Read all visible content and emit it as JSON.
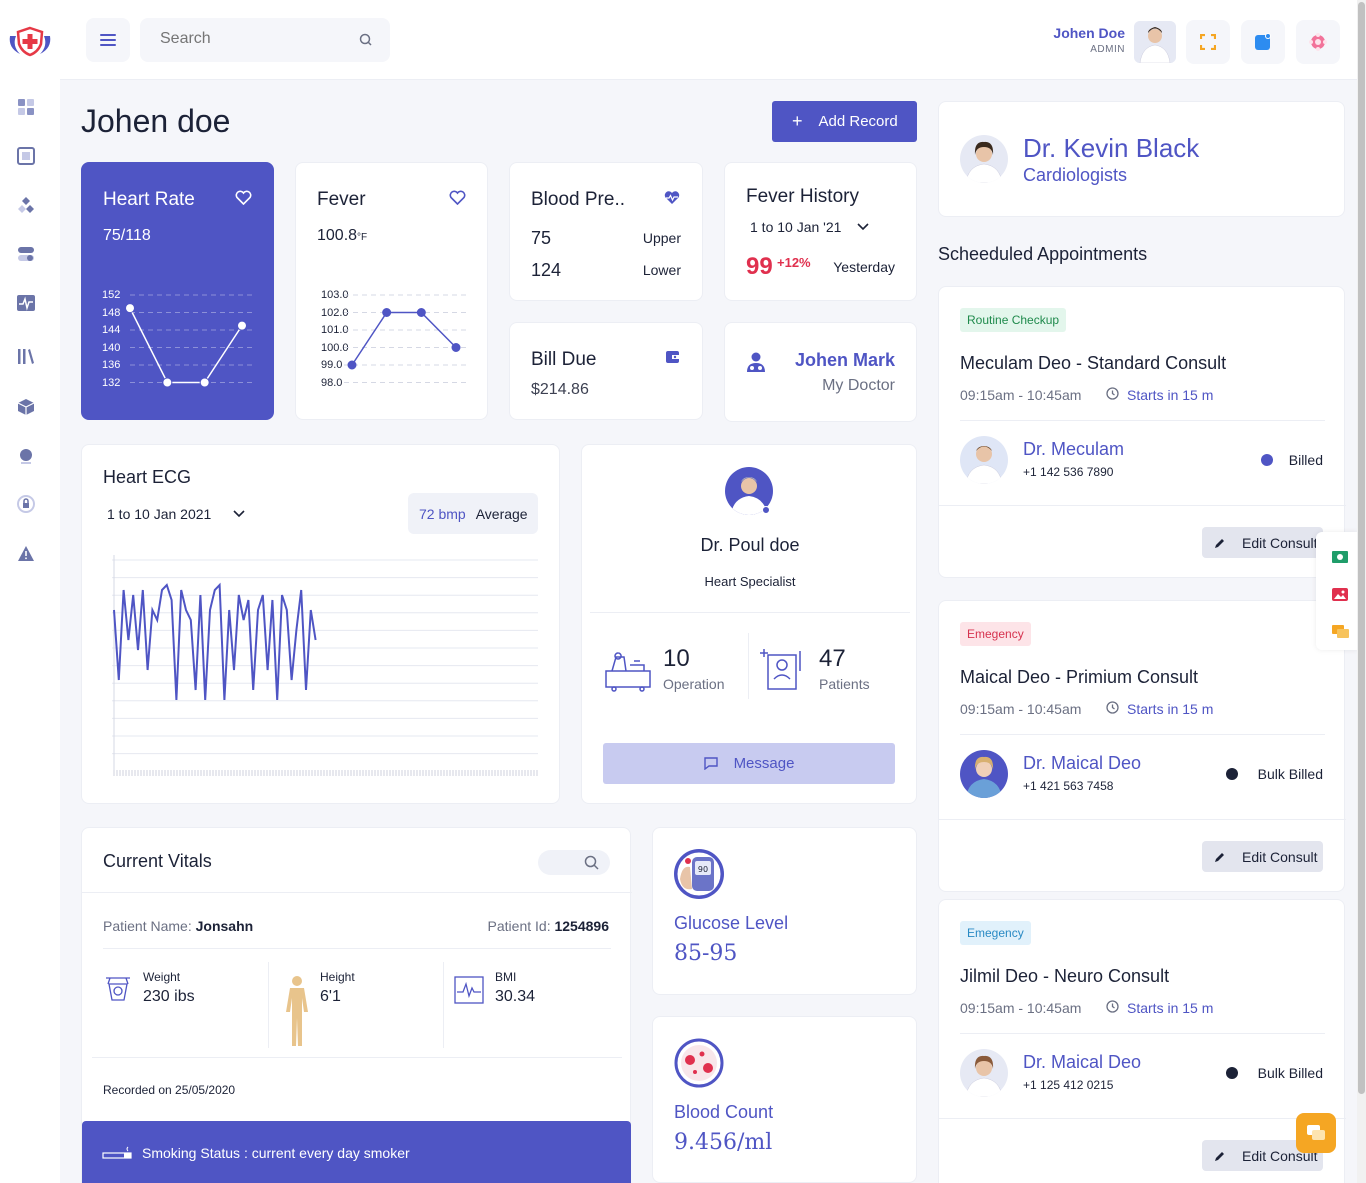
{
  "topbar": {
    "search_placeholder": "Search",
    "user_name": "Johen Doe",
    "user_role": "ADMIN"
  },
  "page": {
    "title": "Johen doe",
    "add_record": "Add Record"
  },
  "heart_rate": {
    "title": "Heart Rate",
    "value": "75/118",
    "yticks": [
      "152",
      "148",
      "144",
      "140",
      "136",
      "132"
    ],
    "points": [
      149,
      132,
      132,
      145
    ]
  },
  "fever": {
    "title": "Fever",
    "value": "100.8",
    "unit": "°F",
    "yticks": [
      "103.0",
      "102.0",
      "101.0",
      "100.0",
      "99.0",
      "98.0"
    ],
    "points": [
      99.0,
      102.0,
      102.0,
      100.0
    ]
  },
  "blood_pressure": {
    "title": "Blood Pre..",
    "upper_value": "75",
    "upper_label": "Upper",
    "lower_value": "124",
    "lower_label": "Lower"
  },
  "fever_history": {
    "title": "Fever History",
    "range": "1 to 10 Jan '21",
    "value": "99",
    "change": "+12%",
    "period": "Yesterday"
  },
  "bill_due": {
    "title": "Bill Due",
    "amount": "$214.86"
  },
  "my_doctor": {
    "name": "Johen Mark",
    "label": "My Doctor"
  },
  "ecg": {
    "title": "Heart ECG",
    "range": "1 to 10 Jan 2021",
    "bpm": "72 bmp",
    "avg_label": "Average"
  },
  "doctor_card": {
    "name": "Dr. Poul doe",
    "specialty": "Heart Specialist",
    "operations": "10",
    "operations_label": "Operation",
    "patients": "47",
    "patients_label": "Patients",
    "message": "Message"
  },
  "vitals": {
    "title": "Current Vitals",
    "patient_name_label": "Patient Name:",
    "patient_name": "Jonsahn",
    "patient_id_label": "Patient Id:",
    "patient_id": "1254896",
    "weight_label": "Weight",
    "weight": "230 ibs",
    "height_label": "Height",
    "height": "6'1",
    "bmi_label": "BMI",
    "bmi": "30.34",
    "recorded": "Recorded on 25/05/2020",
    "smoking": "Smoking Status : current every day smoker"
  },
  "glucose": {
    "label": "Glucose Level",
    "value": "85-95",
    "meter": "90"
  },
  "blood_count": {
    "label": "Blood Count",
    "value": "9.456/ml"
  },
  "profile": {
    "name": "Dr. Kevin Black",
    "specialty": "Cardiologists"
  },
  "appointments": {
    "title": "Scheeduled Appointments",
    "items": [
      {
        "badge": "Routine Checkup",
        "badge_bg": "#e3f6ec",
        "badge_color": "#1f8a4c",
        "title": "Meculam Deo - Standard Consult",
        "time": "09:15am - 10:45am",
        "starts": "Starts in 15 m",
        "doctor": "Dr. Meculam",
        "phone": "+1 142 536 7890",
        "status": "Billed",
        "status_color": "#4f55c4",
        "edit": "Edit Consult"
      },
      {
        "badge": "Emegency",
        "badge_bg": "#fde4e8",
        "badge_color": "#d6334f",
        "title": "Maical Deo - Primium Consult",
        "time": "09:15am - 10:45am",
        "starts": "Starts in 15 m",
        "doctor": "Dr. Maical Deo",
        "phone": "+1 421 563 7458",
        "status": "Bulk Billed",
        "status_color": "#1c2237",
        "edit": "Edit Consult"
      },
      {
        "badge": "Emegency",
        "badge_bg": "#e1f1fb",
        "badge_color": "#2a8ac4",
        "title": "Jilmil Deo - Neuro Consult",
        "time": "09:15am - 10:45am",
        "starts": "Starts in 15 m",
        "doctor": "Dr. Maical Deo",
        "phone": "+1 125 412 0215",
        "status": "Bulk Billed",
        "status_color": "#1c2237",
        "edit": "Edit Consult"
      }
    ]
  }
}
